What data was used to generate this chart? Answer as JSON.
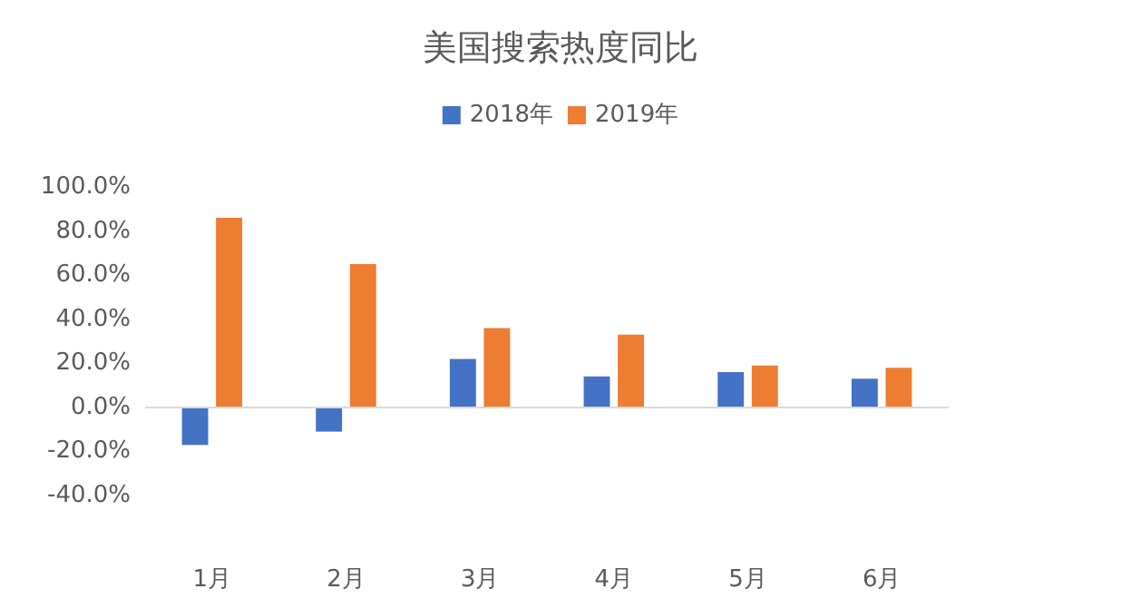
{
  "chart_data": {
    "type": "bar",
    "title": "美国搜索热度同比",
    "categories": [
      "1月",
      "2月",
      "3月",
      "4月",
      "5月",
      "6月"
    ],
    "series": [
      {
        "name": "2018年",
        "color": "#4472c4",
        "values": [
          -17,
          -11,
          22,
          14,
          16,
          13
        ]
      },
      {
        "name": "2019年",
        "color": "#ed7d31",
        "values": [
          86,
          65,
          36,
          33,
          19,
          18
        ]
      }
    ],
    "ylim": [
      -40,
      100
    ],
    "yticks": [
      {
        "value": -40,
        "label": "-40.0%"
      },
      {
        "value": -20,
        "label": "-20.0%"
      },
      {
        "value": 0,
        "label": "0.0%"
      },
      {
        "value": 20,
        "label": "20.0%"
      },
      {
        "value": 40,
        "label": "40.0%"
      },
      {
        "value": 60,
        "label": "60.0%"
      },
      {
        "value": 80,
        "label": "80.0%"
      },
      {
        "value": 100,
        "label": "100.0%"
      }
    ],
    "ref_lines": [
      {
        "axis": "y",
        "value": 0,
        "color": "#d9d9d9"
      }
    ],
    "grid": false,
    "legend": "top"
  }
}
